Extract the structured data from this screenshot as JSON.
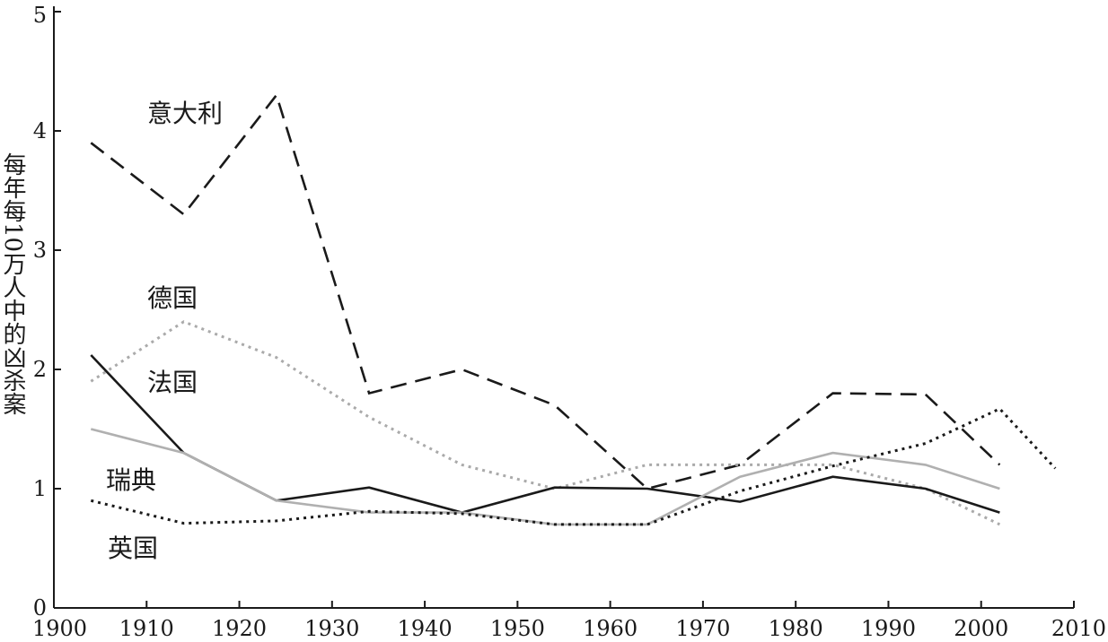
{
  "chart_data": {
    "type": "line",
    "title": "",
    "xlabel": "",
    "ylabel": "每年每10万人中的凶杀案",
    "xlim": [
      1900,
      2010
    ],
    "ylim": [
      0,
      5
    ],
    "x_ticks": [
      1900,
      1910,
      1920,
      1930,
      1940,
      1950,
      1960,
      1970,
      1980,
      1990,
      2000,
      2010
    ],
    "y_ticks": [
      0,
      1,
      2,
      3,
      4,
      5
    ],
    "grid": false,
    "legend": "inline labels",
    "series": [
      {
        "name": "意大利",
        "style": "dashed",
        "color": "#1a1a1a",
        "points": [
          [
            1904,
            3.9
          ],
          [
            1914,
            3.3
          ],
          [
            1924,
            4.3
          ],
          [
            1934,
            1.8
          ],
          [
            1944,
            2.0
          ],
          [
            1954,
            1.7
          ],
          [
            1964,
            1.0
          ],
          [
            1974,
            1.2
          ],
          [
            1984,
            1.8
          ],
          [
            1994,
            1.79
          ],
          [
            2002,
            1.2
          ]
        ]
      },
      {
        "name": "德国",
        "style": "dotted",
        "color": "#aaaaaa",
        "points": [
          [
            1904,
            1.9
          ],
          [
            1914,
            2.4
          ],
          [
            1924,
            2.1
          ],
          [
            1934,
            1.6
          ],
          [
            1944,
            1.2
          ],
          [
            1954,
            1.0
          ],
          [
            1964,
            1.2
          ],
          [
            1974,
            1.2
          ],
          [
            1984,
            1.2
          ],
          [
            1994,
            1.0
          ],
          [
            2002,
            0.7
          ]
        ]
      },
      {
        "name": "法国",
        "style": "solid",
        "color": "#1a1a1a",
        "points": [
          [
            1904,
            2.12
          ],
          [
            1914,
            1.3
          ],
          [
            1924,
            0.9
          ],
          [
            1934,
            1.01
          ],
          [
            1944,
            0.8
          ],
          [
            1954,
            1.01
          ],
          [
            1964,
            1.0
          ],
          [
            1974,
            0.89
          ],
          [
            1984,
            1.1
          ],
          [
            1994,
            1.0
          ],
          [
            2002,
            0.8
          ]
        ]
      },
      {
        "name": "瑞典",
        "style": "solid",
        "color": "#b0b0b0",
        "points": [
          [
            1904,
            1.5
          ],
          [
            1914,
            1.3
          ],
          [
            1924,
            0.9
          ],
          [
            1934,
            0.8
          ],
          [
            1944,
            0.8
          ],
          [
            1954,
            0.7
          ],
          [
            1964,
            0.7
          ],
          [
            1974,
            1.1
          ],
          [
            1984,
            1.3
          ],
          [
            1994,
            1.2
          ],
          [
            2002,
            1.0
          ]
        ]
      },
      {
        "name": "英国",
        "style": "dotted",
        "color": "#1a1a1a",
        "points": [
          [
            1904,
            0.9
          ],
          [
            1914,
            0.71
          ],
          [
            1924,
            0.73
          ],
          [
            1934,
            0.81
          ],
          [
            1944,
            0.79
          ],
          [
            1954,
            0.7
          ],
          [
            1964,
            0.7
          ],
          [
            1974,
            0.98
          ],
          [
            1984,
            1.19
          ],
          [
            1994,
            1.38
          ],
          [
            2002,
            1.67
          ],
          [
            2008,
            1.17
          ]
        ]
      }
    ]
  }
}
